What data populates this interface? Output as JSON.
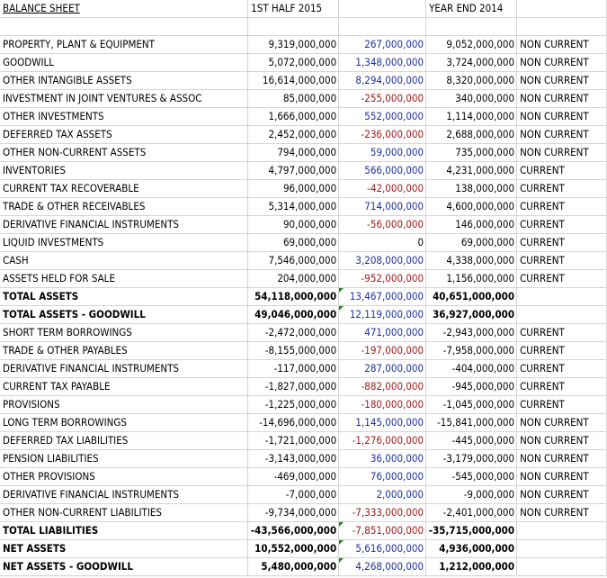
{
  "header": {
    "title": "BALANCE SHEET",
    "col_half": "1ST HALF 2015",
    "col_year": "YEAR END 2014"
  },
  "rows": [
    {
      "label": "PROPERTY, PLANT & EQUIPMENT",
      "h1": "9,319,000,000",
      "diff": "267,000,000",
      "ye": "9,052,000,000",
      "cls": "NON CURRENT",
      "bold": false,
      "sign": "pos",
      "flag": false
    },
    {
      "label": "GOODWILL",
      "h1": "5,072,000,000",
      "diff": "1,348,000,000",
      "ye": "3,724,000,000",
      "cls": "NON CURRENT",
      "bold": false,
      "sign": "pos",
      "flag": false
    },
    {
      "label": "OTHER INTANGIBLE ASSETS",
      "h1": "16,614,000,000",
      "diff": "8,294,000,000",
      "ye": "8,320,000,000",
      "cls": "NON CURRENT",
      "bold": false,
      "sign": "pos",
      "flag": false
    },
    {
      "label": "INVESTMENT IN JOINT VENTURES & ASSOC",
      "h1": "85,000,000",
      "diff": "-255,000,000",
      "ye": "340,000,000",
      "cls": "NON CURRENT",
      "bold": false,
      "sign": "neg",
      "flag": false
    },
    {
      "label": "OTHER INVESTMENTS",
      "h1": "1,666,000,000",
      "diff": "552,000,000",
      "ye": "1,114,000,000",
      "cls": "NON CURRENT",
      "bold": false,
      "sign": "pos",
      "flag": false
    },
    {
      "label": "DEFERRED TAX ASSETS",
      "h1": "2,452,000,000",
      "diff": "-236,000,000",
      "ye": "2,688,000,000",
      "cls": "NON CURRENT",
      "bold": false,
      "sign": "neg",
      "flag": false
    },
    {
      "label": "OTHER NON-CURRENT ASSETS",
      "h1": "794,000,000",
      "diff": "59,000,000",
      "ye": "735,000,000",
      "cls": "NON CURRENT",
      "bold": false,
      "sign": "pos",
      "flag": false
    },
    {
      "label": "INVENTORIES",
      "h1": "4,797,000,000",
      "diff": "566,000,000",
      "ye": "4,231,000,000",
      "cls": "CURRENT",
      "bold": false,
      "sign": "pos",
      "flag": false
    },
    {
      "label": "CURRENT TAX RECOVERABLE",
      "h1": "96,000,000",
      "diff": "-42,000,000",
      "ye": "138,000,000",
      "cls": "CURRENT",
      "bold": false,
      "sign": "neg",
      "flag": false
    },
    {
      "label": "TRADE & OTHER RECEIVABLES",
      "h1": "5,314,000,000",
      "diff": "714,000,000",
      "ye": "4,600,000,000",
      "cls": "CURRENT",
      "bold": false,
      "sign": "pos",
      "flag": false
    },
    {
      "label": "DERIVATIVE FINANCIAL INSTRUMENTS",
      "h1": "90,000,000",
      "diff": "-56,000,000",
      "ye": "146,000,000",
      "cls": "CURRENT",
      "bold": false,
      "sign": "neg",
      "flag": false
    },
    {
      "label": "LIQUID INVESTMENTS",
      "h1": "69,000,000",
      "diff": "0",
      "ye": "69,000,000",
      "cls": "CURRENT",
      "bold": false,
      "sign": "zero",
      "flag": false
    },
    {
      "label": "CASH",
      "h1": "7,546,000,000",
      "diff": "3,208,000,000",
      "ye": "4,338,000,000",
      "cls": "CURRENT",
      "bold": false,
      "sign": "pos",
      "flag": false
    },
    {
      "label": "ASSETS HELD FOR SALE",
      "h1": "204,000,000",
      "diff": "-952,000,000",
      "ye": "1,156,000,000",
      "cls": "CURRENT",
      "bold": false,
      "sign": "neg",
      "flag": false
    },
    {
      "label": "TOTAL ASSETS",
      "h1": "54,118,000,000",
      "diff": "13,467,000,000",
      "ye": "40,651,000,000",
      "cls": "",
      "bold": true,
      "sign": "pos",
      "flag": true
    },
    {
      "label": "TOTAL ASSETS - GOODWILL",
      "h1": "49,046,000,000",
      "diff": "12,119,000,000",
      "ye": "36,927,000,000",
      "cls": "",
      "bold": true,
      "sign": "pos",
      "flag": true
    },
    {
      "label": "SHORT TERM BORROWINGS",
      "h1": "-2,472,000,000",
      "diff": "471,000,000",
      "ye": "-2,943,000,000",
      "cls": "CURRENT",
      "bold": false,
      "sign": "pos",
      "flag": false
    },
    {
      "label": "TRADE & OTHER PAYABLES",
      "h1": "-8,155,000,000",
      "diff": "-197,000,000",
      "ye": "-7,958,000,000",
      "cls": "CURRENT",
      "bold": false,
      "sign": "neg",
      "flag": false
    },
    {
      "label": "DERIVATIVE FINANCIAL INSTRUMENTS",
      "h1": "-117,000,000",
      "diff": "287,000,000",
      "ye": "-404,000,000",
      "cls": "CURRENT",
      "bold": false,
      "sign": "pos",
      "flag": false
    },
    {
      "label": "CURRENT TAX PAYABLE",
      "h1": "-1,827,000,000",
      "diff": "-882,000,000",
      "ye": "-945,000,000",
      "cls": "CURRENT",
      "bold": false,
      "sign": "neg",
      "flag": false
    },
    {
      "label": "PROVISIONS",
      "h1": "-1,225,000,000",
      "diff": "-180,000,000",
      "ye": "-1,045,000,000",
      "cls": "CURRENT",
      "bold": false,
      "sign": "neg",
      "flag": false
    },
    {
      "label": "LONG TERM BORROWINGS",
      "h1": "-14,696,000,000",
      "diff": "1,145,000,000",
      "ye": "-15,841,000,000",
      "cls": "NON CURRENT",
      "bold": false,
      "sign": "pos",
      "flag": false
    },
    {
      "label": "DEFERRED TAX LIABILITIES",
      "h1": "-1,721,000,000",
      "diff": "-1,276,000,000",
      "ye": "-445,000,000",
      "cls": "NON CURRENT",
      "bold": false,
      "sign": "neg",
      "flag": false
    },
    {
      "label": "PENSION LIABILITIES",
      "h1": "-3,143,000,000",
      "diff": "36,000,000",
      "ye": "-3,179,000,000",
      "cls": "NON CURRENT",
      "bold": false,
      "sign": "pos",
      "flag": false
    },
    {
      "label": "OTHER PROVISIONS",
      "h1": "-469,000,000",
      "diff": "76,000,000",
      "ye": "-545,000,000",
      "cls": "NON CURRENT",
      "bold": false,
      "sign": "pos",
      "flag": false
    },
    {
      "label": "DERIVATIVE FINANCIAL INSTRUMENTS",
      "h1": "-7,000,000",
      "diff": "2,000,000",
      "ye": "-9,000,000",
      "cls": "NON CURRENT",
      "bold": false,
      "sign": "pos",
      "flag": false
    },
    {
      "label": "OTHER NON-CURRENT LIABILITIES",
      "h1": "-9,734,000,000",
      "diff": "-7,333,000,000",
      "ye": "-2,401,000,000",
      "cls": "NON CURRENT",
      "bold": false,
      "sign": "neg",
      "flag": false
    },
    {
      "label": "TOTAL LIABILITIES",
      "h1": "-43,566,000,000",
      "diff": "-7,851,000,000",
      "ye": "-35,715,000,000",
      "cls": "",
      "bold": true,
      "sign": "neg",
      "flag": true
    },
    {
      "label": "NET ASSETS",
      "h1": "10,552,000,000",
      "diff": "5,616,000,000",
      "ye": "4,936,000,000",
      "cls": "",
      "bold": true,
      "sign": "pos",
      "flag": true
    },
    {
      "label": "NET ASSETS - GOODWILL",
      "h1": "5,480,000,000",
      "diff": "4,268,000,000",
      "ye": "1,212,000,000",
      "cls": "",
      "bold": true,
      "sign": "pos",
      "flag": true
    }
  ],
  "colors": {
    "positive": "#1c2fa0",
    "negative": "#a01919",
    "gridline": "#d4d4d4",
    "flag": "#1a8a1a"
  }
}
